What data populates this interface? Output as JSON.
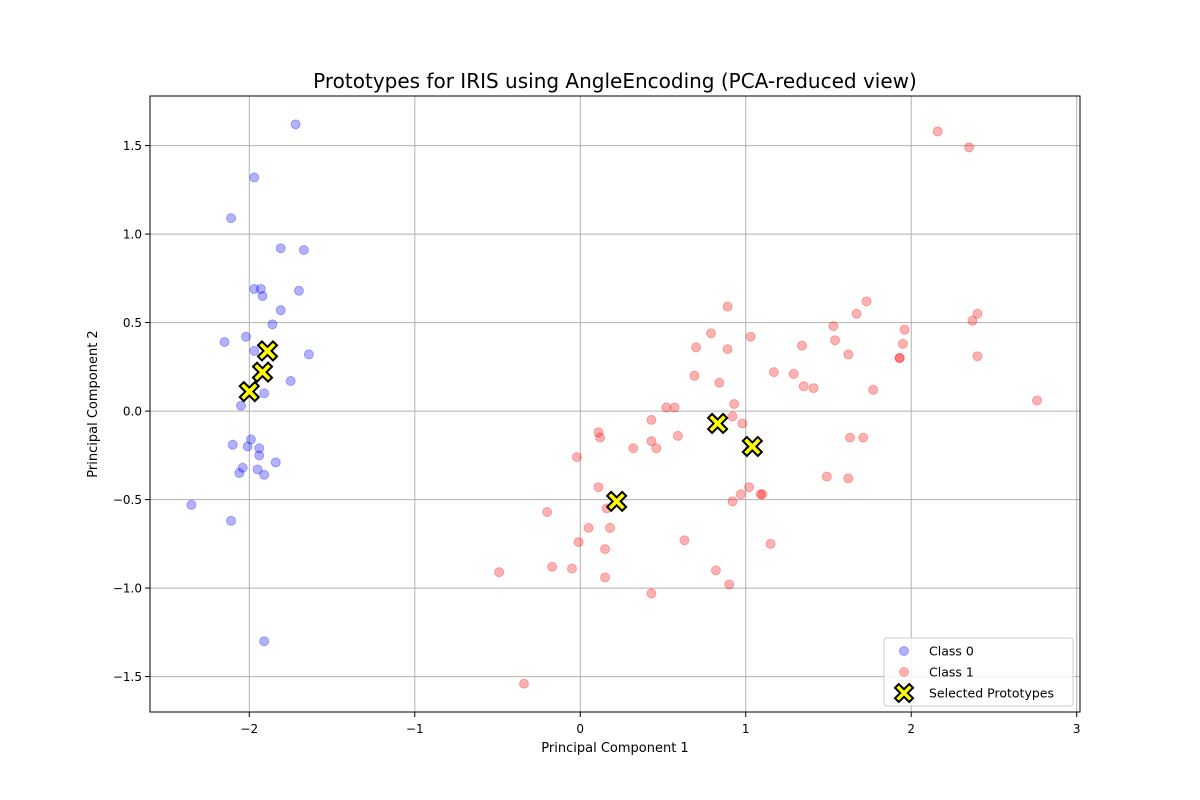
{
  "chart_data": {
    "type": "scatter",
    "title": "Prototypes for IRIS using AngleEncoding (PCA-reduced view)",
    "xlabel": "Principal Component 1",
    "ylabel": "Principal Component 2",
    "xlim": [
      -2.6,
      3.02
    ],
    "ylim": [
      -1.7,
      1.78
    ],
    "xticks": [
      -2,
      -1,
      0,
      1,
      2,
      3
    ],
    "xtick_labels": [
      "−2",
      "−1",
      "0",
      "1",
      "2",
      "3"
    ],
    "yticks": [
      -1.5,
      -1.0,
      -0.5,
      0.0,
      0.5,
      1.0,
      1.5
    ],
    "ytick_labels": [
      "−1.5",
      "−1.0",
      "−0.5",
      "0.0",
      "0.5",
      "1.0",
      "1.5"
    ],
    "grid": true,
    "legend_position": "lower-right",
    "series": [
      {
        "name": "Class 0",
        "color": "#0000ff",
        "marker": "circle",
        "points": [
          [
            -1.72,
            1.62
          ],
          [
            -1.97,
            1.32
          ],
          [
            -2.11,
            1.09
          ],
          [
            -1.81,
            0.92
          ],
          [
            -1.67,
            0.91
          ],
          [
            -1.97,
            0.69
          ],
          [
            -1.93,
            0.69
          ],
          [
            -1.92,
            0.65
          ],
          [
            -1.7,
            0.68
          ],
          [
            -1.81,
            0.57
          ],
          [
            -1.86,
            0.49
          ],
          [
            -2.02,
            0.42
          ],
          [
            -2.15,
            0.39
          ],
          [
            -1.97,
            0.34
          ],
          [
            -1.64,
            0.32
          ],
          [
            -1.75,
            0.17
          ],
          [
            -1.91,
            0.1
          ],
          [
            -2.05,
            0.03
          ],
          [
            -1.99,
            -0.16
          ],
          [
            -2.1,
            -0.19
          ],
          [
            -2.01,
            -0.2
          ],
          [
            -1.94,
            -0.21
          ],
          [
            -1.94,
            -0.25
          ],
          [
            -1.84,
            -0.29
          ],
          [
            -2.04,
            -0.32
          ],
          [
            -1.95,
            -0.33
          ],
          [
            -2.06,
            -0.35
          ],
          [
            -1.91,
            -0.36
          ],
          [
            -2.35,
            -0.53
          ],
          [
            -2.11,
            -0.62
          ],
          [
            -1.91,
            -1.3
          ]
        ]
      },
      {
        "name": "Class 1",
        "color": "#ff0000",
        "marker": "circle",
        "points": [
          [
            2.16,
            1.58
          ],
          [
            2.35,
            1.49
          ],
          [
            1.73,
            0.62
          ],
          [
            0.89,
            0.59
          ],
          [
            2.4,
            0.55
          ],
          [
            1.67,
            0.55
          ],
          [
            2.37,
            0.51
          ],
          [
            1.53,
            0.48
          ],
          [
            1.96,
            0.46
          ],
          [
            0.79,
            0.44
          ],
          [
            1.03,
            0.42
          ],
          [
            1.54,
            0.4
          ],
          [
            1.95,
            0.38
          ],
          [
            0.7,
            0.36
          ],
          [
            0.89,
            0.35
          ],
          [
            1.34,
            0.37
          ],
          [
            1.62,
            0.32
          ],
          [
            2.4,
            0.31
          ],
          [
            1.93,
            0.3
          ],
          [
            1.93,
            0.3
          ],
          [
            1.17,
            0.22
          ],
          [
            1.29,
            0.21
          ],
          [
            0.69,
            0.2
          ],
          [
            0.84,
            0.16
          ],
          [
            1.35,
            0.14
          ],
          [
            1.41,
            0.13
          ],
          [
            1.77,
            0.12
          ],
          [
            2.76,
            0.06
          ],
          [
            0.93,
            0.04
          ],
          [
            0.52,
            0.02
          ],
          [
            0.57,
            0.02
          ],
          [
            0.92,
            -0.03
          ],
          [
            0.43,
            -0.05
          ],
          [
            0.98,
            -0.07
          ],
          [
            0.11,
            -0.12
          ],
          [
            0.59,
            -0.14
          ],
          [
            0.12,
            -0.15
          ],
          [
            1.63,
            -0.15
          ],
          [
            1.71,
            -0.15
          ],
          [
            0.43,
            -0.17
          ],
          [
            0.32,
            -0.21
          ],
          [
            0.46,
            -0.21
          ],
          [
            -0.02,
            -0.26
          ],
          [
            1.49,
            -0.37
          ],
          [
            1.62,
            -0.38
          ],
          [
            0.11,
            -0.43
          ],
          [
            1.02,
            -0.43
          ],
          [
            0.97,
            -0.47
          ],
          [
            1.09,
            -0.47
          ],
          [
            1.1,
            -0.47
          ],
          [
            0.92,
            -0.51
          ],
          [
            0.16,
            -0.55
          ],
          [
            -0.2,
            -0.57
          ],
          [
            0.05,
            -0.66
          ],
          [
            0.18,
            -0.66
          ],
          [
            0.63,
            -0.73
          ],
          [
            -0.01,
            -0.74
          ],
          [
            1.15,
            -0.75
          ],
          [
            0.15,
            -0.78
          ],
          [
            -0.17,
            -0.88
          ],
          [
            -0.05,
            -0.89
          ],
          [
            0.82,
            -0.9
          ],
          [
            -0.49,
            -0.91
          ],
          [
            0.15,
            -0.94
          ],
          [
            0.9,
            -0.98
          ],
          [
            0.43,
            -1.03
          ],
          [
            -0.34,
            -1.54
          ]
        ]
      },
      {
        "name": "Selected Prototypes",
        "color": "#ffff00",
        "edgecolor": "#000000",
        "marker": "x-filled",
        "points": [
          [
            -1.89,
            0.34
          ],
          [
            -1.92,
            0.22
          ],
          [
            -2.0,
            0.11
          ],
          [
            0.83,
            -0.07
          ],
          [
            1.04,
            -0.2
          ],
          [
            0.22,
            -0.51
          ]
        ]
      }
    ]
  }
}
